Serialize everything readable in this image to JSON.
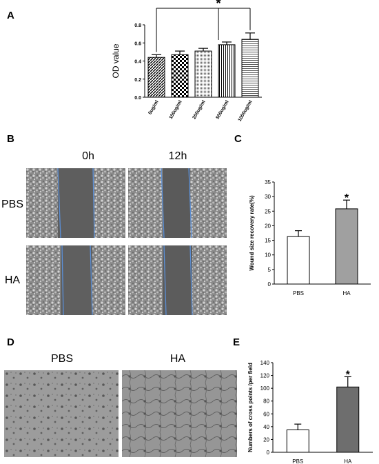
{
  "panels": {
    "a": "A",
    "b": "B",
    "c": "C",
    "d": "D",
    "e": "E"
  },
  "panel_b": {
    "col_labels": [
      "0h",
      "12h"
    ],
    "row_labels": [
      "PBS",
      "HA"
    ]
  },
  "panel_d": {
    "col_labels": [
      "PBS",
      "HA"
    ]
  },
  "colors": {
    "bar_white": "#ffffff",
    "bar_gray": "#a0a0a0",
    "bar_dark": "#6e6e6e",
    "scratch_line": "#5b8fd6",
    "micro_bg": "#6a6a6a",
    "micro_light": "#c8c8c8"
  },
  "chart_data": [
    {
      "id": "A",
      "type": "bar",
      "categories": [
        "0ug/ml",
        "100ug/ml",
        "200ug/ml",
        "500ug/ml",
        "1000ug/ml"
      ],
      "values": [
        0.44,
        0.47,
        0.51,
        0.58,
        0.64
      ],
      "errors": [
        0.03,
        0.04,
        0.03,
        0.03,
        0.07
      ],
      "patterns": [
        "diagonal",
        "checker",
        "dots",
        "vertical",
        "horizontal"
      ],
      "ylabel": "OD value",
      "xlabel": "",
      "ylim": [
        0.0,
        0.8
      ],
      "yticks": [
        "0.0",
        "0.2",
        "0.4",
        "0.6",
        "0.8"
      ],
      "significance": {
        "from": 0,
        "to": 4,
        "mark": "*"
      },
      "grid": false
    },
    {
      "id": "C",
      "type": "bar",
      "categories": [
        "PBS",
        "HA"
      ],
      "values": [
        16.3,
        25.8
      ],
      "errors": [
        2.0,
        3.0
      ],
      "fills": [
        "#ffffff",
        "#a0a0a0"
      ],
      "ylabel": "Wound size recovery rate(%)",
      "xlabel": "",
      "ylim": [
        0,
        35
      ],
      "yticks": [
        "0",
        "5",
        "10",
        "15",
        "20",
        "25",
        "30",
        "35"
      ],
      "marks": [
        "",
        "*"
      ],
      "grid": false
    },
    {
      "id": "E",
      "type": "bar",
      "categories": [
        "PBS",
        "HA"
      ],
      "values": [
        35,
        102
      ],
      "errors": [
        9,
        16
      ],
      "fills": [
        "#ffffff",
        "#6e6e6e"
      ],
      "ylabel": "Numbers of cross points /per field",
      "xlabel": "",
      "ylim": [
        0,
        140
      ],
      "yticks": [
        "0",
        "20",
        "40",
        "60",
        "80",
        "100",
        "120",
        "140"
      ],
      "marks": [
        "",
        "*"
      ],
      "grid": false
    }
  ]
}
